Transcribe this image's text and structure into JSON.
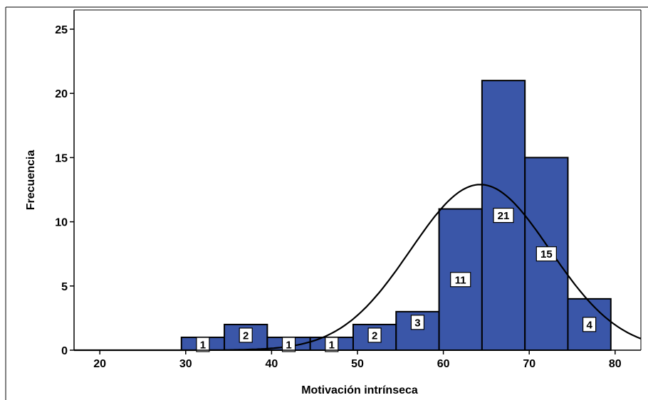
{
  "chart_data": {
    "type": "bar",
    "title": "",
    "xlabel": "Motivación intrínseca",
    "ylabel": "Frecuencia",
    "xlim": [
      17,
      83
    ],
    "ylim": [
      0,
      26
    ],
    "x_ticks": [
      20,
      30,
      40,
      50,
      60,
      70,
      80
    ],
    "y_ticks": [
      0,
      5,
      10,
      15,
      20,
      25
    ],
    "grid": false,
    "legend": "none",
    "bins": [
      {
        "start": 29.5,
        "end": 34.5,
        "count": 1
      },
      {
        "start": 34.5,
        "end": 39.5,
        "count": 2
      },
      {
        "start": 39.5,
        "end": 44.5,
        "count": 1
      },
      {
        "start": 44.5,
        "end": 49.5,
        "count": 1
      },
      {
        "start": 49.5,
        "end": 54.5,
        "count": 2
      },
      {
        "start": 54.5,
        "end": 59.5,
        "count": 3
      },
      {
        "start": 59.5,
        "end": 64.5,
        "count": 11
      },
      {
        "start": 64.5,
        "end": 69.5,
        "count": 21
      },
      {
        "start": 69.5,
        "end": 74.5,
        "count": 15
      },
      {
        "start": 74.5,
        "end": 79.5,
        "count": 4
      }
    ],
    "normal_curve": {
      "mean": 64.3,
      "sd": 8.1,
      "peak": 12.9
    },
    "colors": {
      "bar": "#3a56a8",
      "edge": "#000000",
      "curve": "#000000"
    }
  }
}
